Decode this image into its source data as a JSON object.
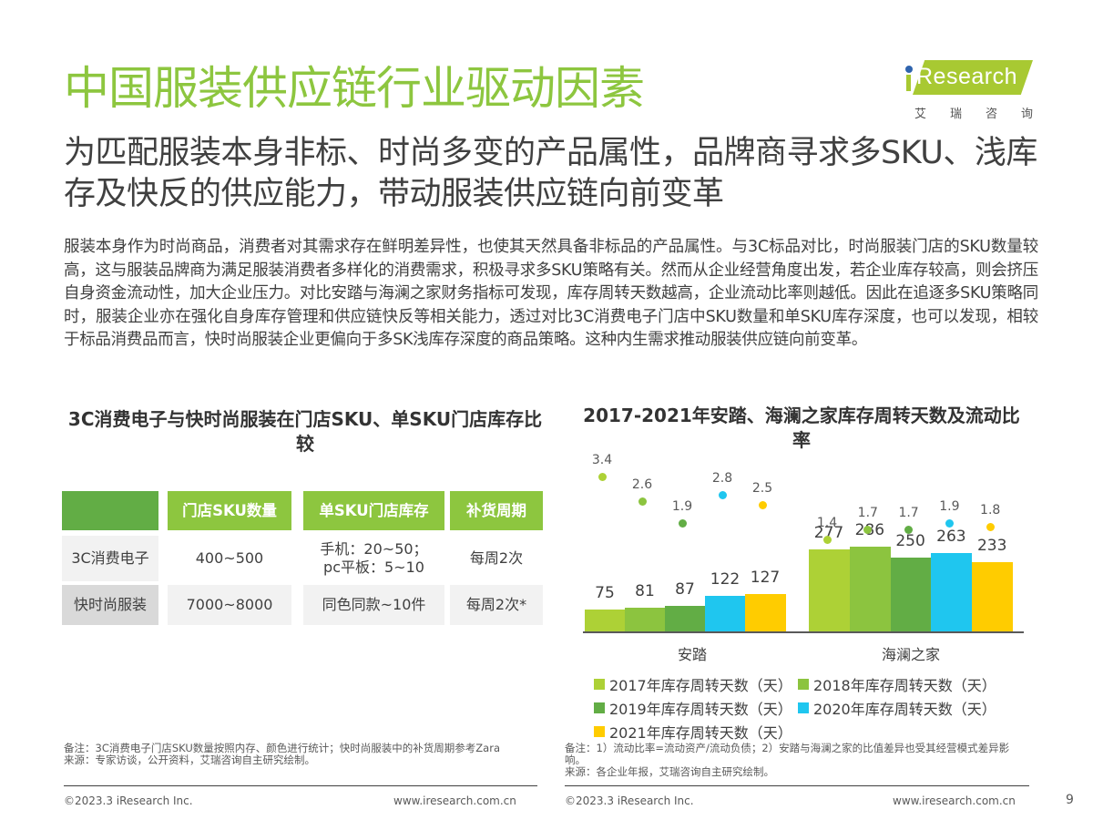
{
  "header": {
    "title": "中国服装供应链行业驱动因素",
    "subtitle": "为匹配服装本身非标、时尚多变的产品属性，品牌商寻求多SKU、浅库存及快反的供应能力，带动服装供应链向前变革"
  },
  "logo": {
    "text": "Research",
    "cn_chars": [
      "艾",
      "瑞",
      "咨",
      "询"
    ],
    "brand_color": "#a8c932",
    "dot_color": "#2f64ae"
  },
  "body_text": "服装本身作为时尚商品，消费者对其需求存在鲜明差异性，也使其天然具备非标品的产品属性。与3C标品对比，时尚服装门店的SKU数量较高，这与服装品牌商为满足服装消费者多样化的消费需求，积极寻求多SKU策略有关。然而从企业经营角度出发，若企业库存较高，则会挤压自身资金流动性，加大企业压力。对比安踏与海澜之家财务指标可发现，库存周转天数越高，企业流动比率则越低。因此在追逐多SKU策略同时，服装企业亦在强化自身库存管理和供应链快反等相关能力，透过对比3C消费电子门店中SKU数量和单SKU库存深度，也可以发现，相较于标品消费品而言，快时尚服装企业更偏向于多SK浅库存深度的商品策略。这种内生需求推动服装供应链向前变革。",
  "table": {
    "title": "3C消费电子与快时尚服装在门店SKU、单SKU门店库存比较",
    "headers": [
      "",
      "门店SKU数量",
      "单SKU门店库存",
      "补货周期"
    ],
    "rows": [
      [
        "3C消费电子",
        "400~500",
        "手机：20~50；\npc平板：5~10",
        "每周2次"
      ],
      [
        "快时尚服装",
        "7000~8000",
        "同色同款~10件",
        "每周2次*"
      ]
    ],
    "header_color": "#8dc63f",
    "header_first_color": "#62ad45"
  },
  "chart_data": {
    "type": "bar",
    "title": "2017-2021年安踏、海澜之家库存周转天数及流动比率",
    "categories": [
      "安踏",
      "海澜之家"
    ],
    "series": [
      {
        "name": "2017年库存周转天数（天）",
        "color": "#add136",
        "values": [
          75,
          277
        ],
        "current_ratio": [
          3.4,
          1.4
        ]
      },
      {
        "name": "2018年库存周转天数（天）",
        "color": "#8cc43f",
        "values": [
          81,
          286
        ],
        "current_ratio": [
          2.6,
          1.7
        ]
      },
      {
        "name": "2019年库存周转天数（天）",
        "color": "#62ad45",
        "values": [
          87,
          250
        ],
        "current_ratio": [
          1.9,
          1.7
        ]
      },
      {
        "name": "2020年库存周转天数（天）",
        "color": "#1fc6ef",
        "values": [
          122,
          263
        ],
        "current_ratio": [
          2.8,
          1.9
        ]
      },
      {
        "name": "2021年库存周转天数（天）",
        "color": "#ffcc00",
        "values": [
          127,
          233
        ],
        "current_ratio": [
          2.5,
          1.8
        ]
      }
    ],
    "xlabel": "",
    "ylabel": "",
    "grid": false,
    "legend_position": "bottom",
    "secondary_series_name": "流动比率 (dots)"
  },
  "notes": {
    "left_note": "备注：3C消费电子门店SKU数量按照内存、颜色进行统计；快时尚服装中的补货周期参考Zara",
    "left_source": "来源：专家访谈，公开资料，艾瑞咨询自主研究绘制。",
    "right_note": "备注：1）流动比率=流动资产/流动负债；2）安踏与海澜之家的比值差异也受其经营模式差异影响。",
    "right_source": "来源：各企业年报，艾瑞咨询自主研究绘制。"
  },
  "footer": {
    "copyright": "©2023.3 iResearch Inc.",
    "url": "www.iresearch.com.cn",
    "page_number": "9"
  }
}
